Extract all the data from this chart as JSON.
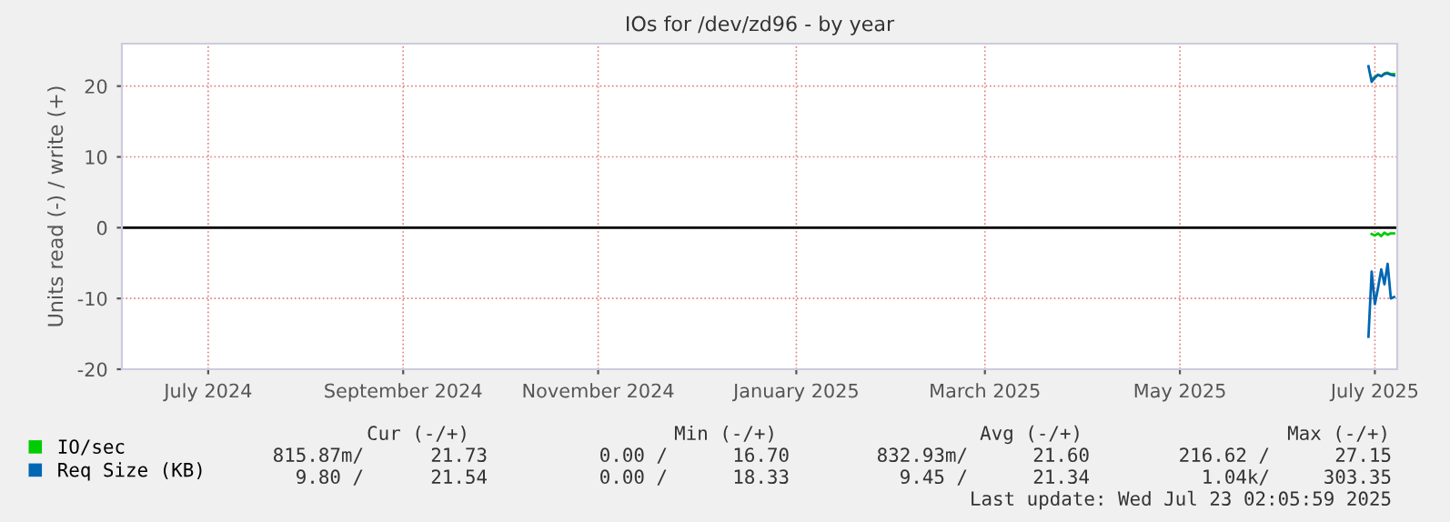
{
  "chart_data": {
    "type": "line",
    "title": "IOs for /dev/zd96 - by year",
    "ylabel": "Units read (-) / write (+)",
    "xlim": [
      "2024-06-19",
      "2025-07-23"
    ],
    "xticks": [
      {
        "value": "2024-07-16",
        "label": "July 2024"
      },
      {
        "value": "2024-09-15",
        "label": "September 2024"
      },
      {
        "value": "2024-11-15",
        "label": "November 2024"
      },
      {
        "value": "2025-01-16",
        "label": "January 2025"
      },
      {
        "value": "2025-03-16",
        "label": "March 2025"
      },
      {
        "value": "2025-05-16",
        "label": "May 2025"
      },
      {
        "value": "2025-07-16",
        "label": "July 2025"
      }
    ],
    "ylim": [
      -20,
      26
    ],
    "yticks": [
      -20,
      -10,
      0,
      10,
      20
    ],
    "grid": true,
    "legend": "bottom left",
    "series": [
      {
        "name": "IO/sec",
        "color": "#00cc00",
        "x": [
          "2025-07-15",
          "2025-07-16",
          "2025-07-17",
          "2025-07-18",
          "2025-07-19",
          "2025-07-20",
          "2025-07-21",
          "2025-07-22"
        ],
        "values": [
          21.0,
          21.3,
          21.6,
          21.4,
          21.8,
          21.9,
          21.7,
          21.7
        ]
      },
      {
        "color": "#00cc00",
        "x": [
          "2025-07-15",
          "2025-07-16",
          "2025-07-17",
          "2025-07-18",
          "2025-07-19",
          "2025-07-20",
          "2025-07-21",
          "2025-07-22"
        ],
        "values": [
          -0.9,
          -1.1,
          -0.8,
          -1.2,
          -0.7,
          -1.0,
          -0.8,
          -0.8
        ]
      },
      {
        "name": "Req Size (KB)",
        "color": "#0066b3",
        "x": [
          "2025-07-14",
          "2025-07-15",
          "2025-07-16",
          "2025-07-17",
          "2025-07-18",
          "2025-07-19",
          "2025-07-20",
          "2025-07-21",
          "2025-07-22"
        ],
        "values": [
          22.8,
          20.6,
          21.2,
          21.6,
          21.4,
          21.7,
          21.8,
          21.6,
          21.5
        ]
      },
      {
        "color": "#0066b3",
        "x": [
          "2025-07-14",
          "2025-07-15",
          "2025-07-16",
          "2025-07-17",
          "2025-07-18",
          "2025-07-19",
          "2025-07-20",
          "2025-07-21",
          "2025-07-22"
        ],
        "values": [
          -15.4,
          -6.2,
          -10.8,
          -8.5,
          -5.9,
          -8.0,
          -5.1,
          -10.0,
          -9.8
        ]
      }
    ],
    "ref_lines": [
      {
        "axis": "y",
        "value": 0,
        "color": "#000000"
      }
    ],
    "annotations": [
      "Cur (-/+)",
      "Min (-/+)",
      "Avg (-/+)",
      "Max (-/+)",
      "815.87m/",
      "21.73",
      "0.00 /",
      "16.70",
      "832.93m/",
      "21.60",
      "216.62 /",
      "27.15",
      "9.80 /",
      "21.54",
      "0.00 /",
      "18.33",
      "9.45 /",
      "21.34",
      "1.04k/",
      "303.35",
      "Last update: Wed Jul 23 02:05:59 2025"
    ]
  }
}
